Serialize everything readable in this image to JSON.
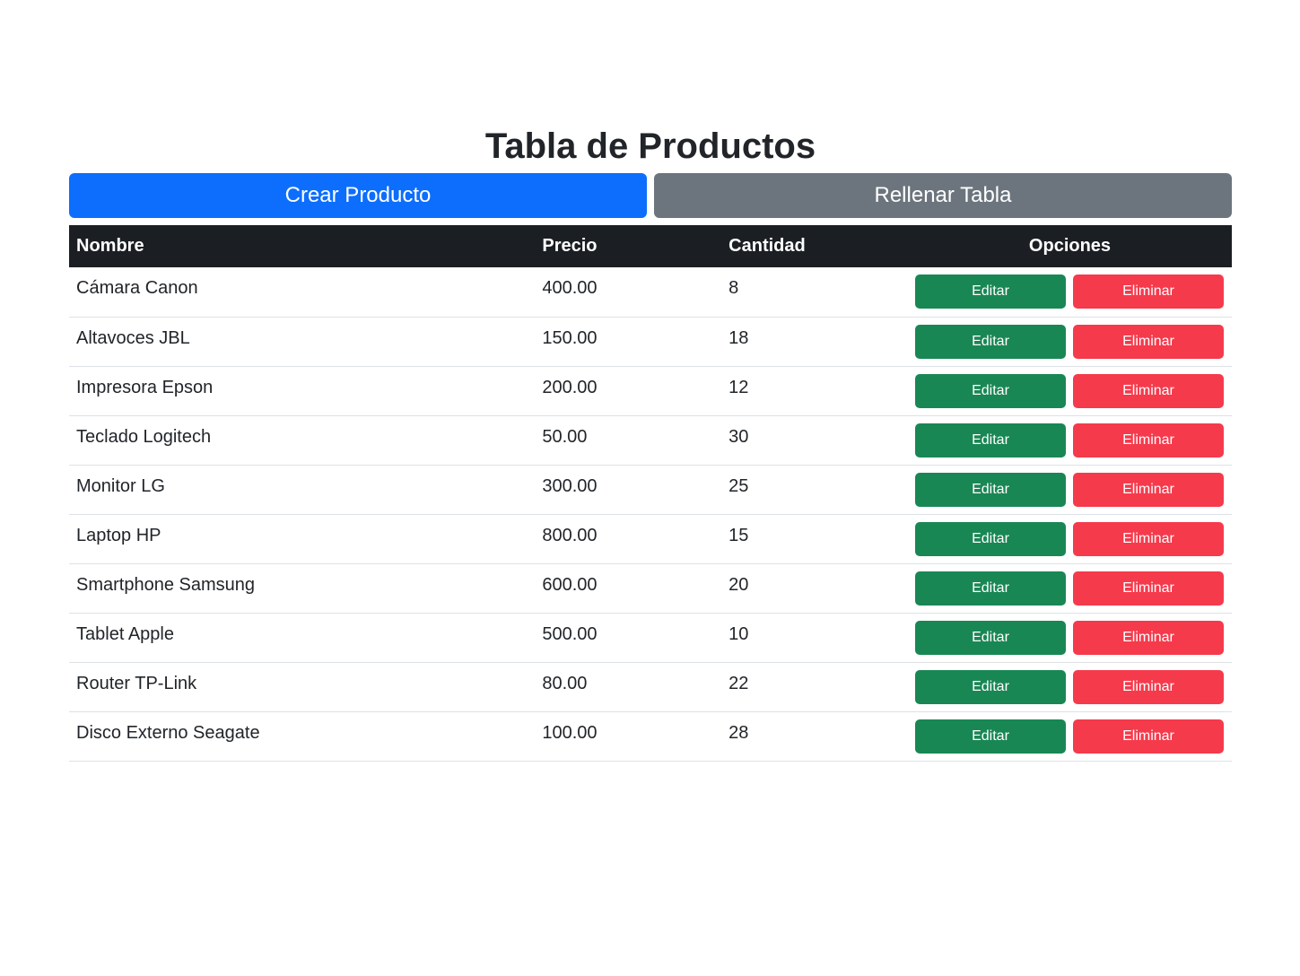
{
  "title": "Tabla de Productos",
  "actions": {
    "create_label": "Crear Producto",
    "fill_label": "Rellenar Tabla"
  },
  "table": {
    "headers": [
      "Nombre",
      "Precio",
      "Cantidad",
      "Opciones"
    ],
    "edit_label": "Editar",
    "delete_label": "Eliminar",
    "rows": [
      {
        "name": "Cámara Canon",
        "price": "400.00",
        "qty": "8"
      },
      {
        "name": "Altavoces JBL",
        "price": "150.00",
        "qty": "18"
      },
      {
        "name": "Impresora Epson",
        "price": "200.00",
        "qty": "12"
      },
      {
        "name": "Teclado Logitech",
        "price": "50.00",
        "qty": "30"
      },
      {
        "name": "Monitor LG",
        "price": "300.00",
        "qty": "25"
      },
      {
        "name": "Laptop HP",
        "price": "800.00",
        "qty": "15"
      },
      {
        "name": "Smartphone Samsung",
        "price": "600.00",
        "qty": "20"
      },
      {
        "name": "Tablet Apple",
        "price": "500.00",
        "qty": "10"
      },
      {
        "name": "Router TP-Link",
        "price": "80.00",
        "qty": "22"
      },
      {
        "name": "Disco Externo Seagate",
        "price": "100.00",
        "qty": "28"
      }
    ]
  },
  "colors": {
    "primary": "#0d6efd",
    "secondary": "#6c757d",
    "success": "#198754",
    "danger": "#f53a4c",
    "header_bg": "#1b1f24"
  }
}
